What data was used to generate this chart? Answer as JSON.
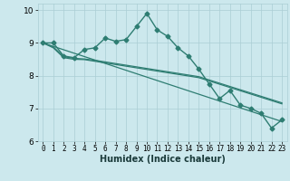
{
  "xlabel": "Humidex (Indice chaleur)",
  "xlim": [
    -0.5,
    23.5
  ],
  "ylim": [
    6,
    10.2
  ],
  "yticks": [
    6,
    7,
    8,
    9,
    10
  ],
  "xticks": [
    0,
    1,
    2,
    3,
    4,
    5,
    6,
    7,
    8,
    9,
    10,
    11,
    12,
    13,
    14,
    15,
    16,
    17,
    18,
    19,
    20,
    21,
    22,
    23
  ],
  "bg_color": "#cce8ed",
  "line_color": "#2e7d72",
  "grid_color": "#aacdd4",
  "lines": [
    {
      "x": [
        0,
        1,
        2,
        3,
        4,
        5,
        6,
        7,
        8,
        9,
        10,
        11,
        12,
        13,
        14,
        15,
        16,
        17,
        18,
        19,
        20,
        21,
        22,
        23
      ],
      "y": [
        9.0,
        9.0,
        8.6,
        8.55,
        8.8,
        8.85,
        9.15,
        9.05,
        9.1,
        9.5,
        9.9,
        9.4,
        9.2,
        8.85,
        8.6,
        8.2,
        7.75,
        7.3,
        7.55,
        7.1,
        7.0,
        6.85,
        6.4,
        6.65
      ],
      "marker": "D",
      "markersize": 2.5,
      "linewidth": 1.0
    },
    {
      "x": [
        0,
        23
      ],
      "y": [
        9.0,
        6.6
      ],
      "marker": null,
      "markersize": 0,
      "linewidth": 0.9
    },
    {
      "x": [
        0,
        1,
        2,
        3,
        4,
        5,
        6,
        7,
        8,
        9,
        10,
        11,
        12,
        13,
        14,
        15,
        16,
        17,
        18,
        19,
        20,
        21,
        22,
        23
      ],
      "y": [
        9.0,
        8.88,
        8.58,
        8.53,
        8.51,
        8.47,
        8.42,
        8.37,
        8.32,
        8.27,
        8.22,
        8.17,
        8.12,
        8.07,
        8.02,
        7.97,
        7.87,
        7.77,
        7.67,
        7.57,
        7.47,
        7.37,
        7.27,
        7.17
      ],
      "marker": null,
      "markersize": 0,
      "linewidth": 0.9
    },
    {
      "x": [
        0,
        1,
        2,
        3,
        4,
        5,
        6,
        7,
        8,
        9,
        10,
        11,
        12,
        13,
        14,
        15,
        16,
        17,
        18,
        19,
        20,
        21,
        22,
        23
      ],
      "y": [
        9.0,
        8.85,
        8.55,
        8.5,
        8.49,
        8.44,
        8.39,
        8.34,
        8.29,
        8.24,
        8.19,
        8.14,
        8.09,
        8.04,
        7.99,
        7.94,
        7.84,
        7.74,
        7.64,
        7.54,
        7.44,
        7.34,
        7.24,
        7.14
      ],
      "marker": null,
      "markersize": 0,
      "linewidth": 0.9
    }
  ]
}
